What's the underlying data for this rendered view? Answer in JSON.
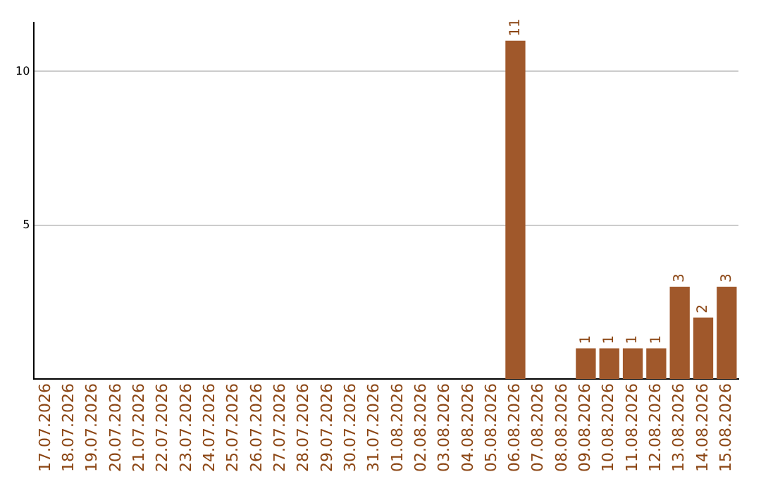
{
  "chart_data": {
    "type": "bar",
    "categories": [
      "17.07.2026",
      "18.07.2026",
      "19.07.2026",
      "20.07.2026",
      "21.07.2026",
      "22.07.2026",
      "23.07.2026",
      "24.07.2026",
      "25.07.2026",
      "26.07.2026",
      "27.07.2026",
      "28.07.2026",
      "29.07.2026",
      "30.07.2026",
      "31.07.2026",
      "01.08.2026",
      "02.08.2026",
      "03.08.2026",
      "04.08.2026",
      "05.08.2026",
      "06.08.2026",
      "07.08.2026",
      "08.08.2026",
      "09.08.2026",
      "10.08.2026",
      "11.08.2026",
      "12.08.2026",
      "13.08.2026",
      "14.08.2026",
      "15.08.2026"
    ],
    "values": [
      0,
      0,
      0,
      0,
      0,
      0,
      0,
      0,
      0,
      0,
      0,
      0,
      0,
      0,
      0,
      0,
      0,
      0,
      0,
      0,
      11,
      0,
      0,
      1,
      1,
      1,
      1,
      3,
      2,
      3
    ],
    "value_labels": [
      null,
      null,
      null,
      null,
      null,
      null,
      null,
      null,
      null,
      null,
      null,
      null,
      null,
      null,
      null,
      null,
      null,
      null,
      null,
      null,
      "11",
      null,
      null,
      "1",
      "1",
      "1",
      "1",
      "3",
      "2",
      "3"
    ],
    "color": "#a0582b",
    "ylim": [
      0,
      11.6
    ],
    "yticks": [
      5,
      10
    ],
    "grid": "y"
  }
}
